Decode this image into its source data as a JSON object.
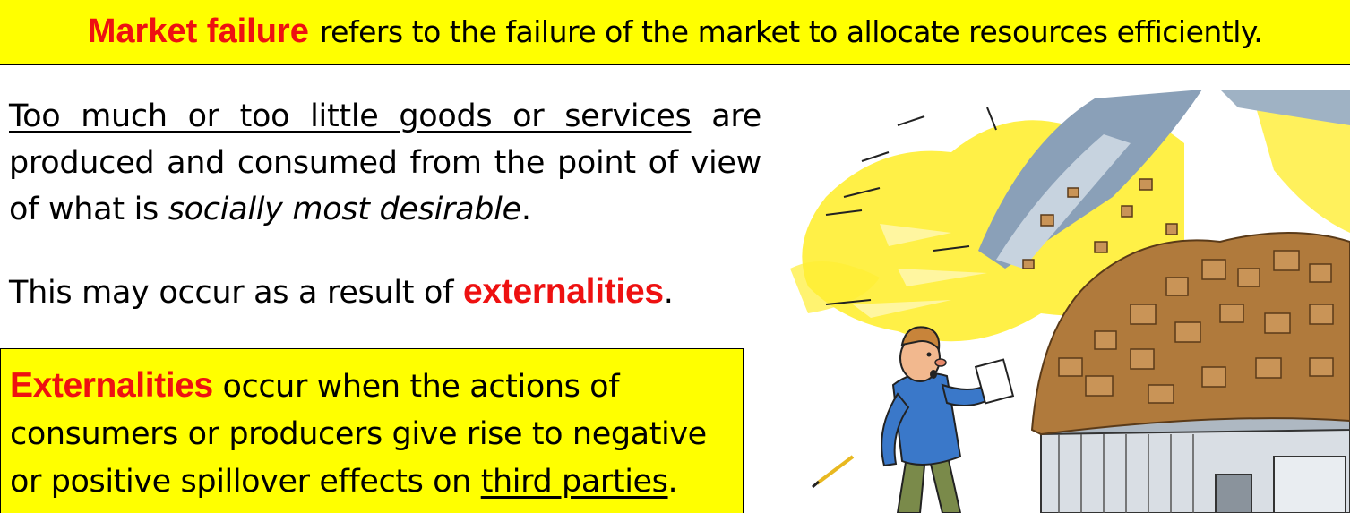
{
  "banner": {
    "term": "Market failure",
    "definition": "refers to the failure of the market to allocate resources efficiently."
  },
  "paragraph1": {
    "underlined": "Too much or too little goods or services",
    "middle": " are produced and consumed from the point of view of what is ",
    "italic": "socially most desirable",
    "end": "."
  },
  "paragraph2": {
    "before": "This may occur as a result of ",
    "highlight": "externalities",
    "end": "."
  },
  "definition_box": {
    "term": "Externalities",
    "middle": " occur when the actions of consumers or producers give rise to negative or positive spillover effects on ",
    "underlined": "third parties",
    "end": "."
  },
  "illustration": {
    "icon": "cartoon-man-with-exploding-warehouse",
    "colors": {
      "burst": "#ffee33",
      "boxes": "#b07a3c",
      "shirt": "#3a78c9",
      "sky": "#8aa0b8"
    }
  }
}
